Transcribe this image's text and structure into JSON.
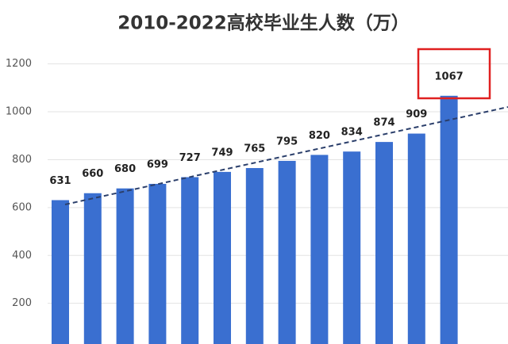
{
  "chart_data": {
    "type": "bar",
    "title": "2010-2022高校毕业生人数（万）",
    "categories": [
      null,
      null,
      null,
      null,
      null,
      null,
      null,
      null,
      null,
      null,
      null,
      null,
      null
    ],
    "values": [
      631,
      660,
      680,
      699,
      727,
      749,
      765,
      795,
      820,
      834,
      874,
      909,
      1067
    ],
    "color": "#3a6fd0",
    "ylim": [
      30,
      1280
    ],
    "yticks": [
      200,
      400,
      600,
      800,
      1000,
      1200
    ],
    "grid": true
  }
}
